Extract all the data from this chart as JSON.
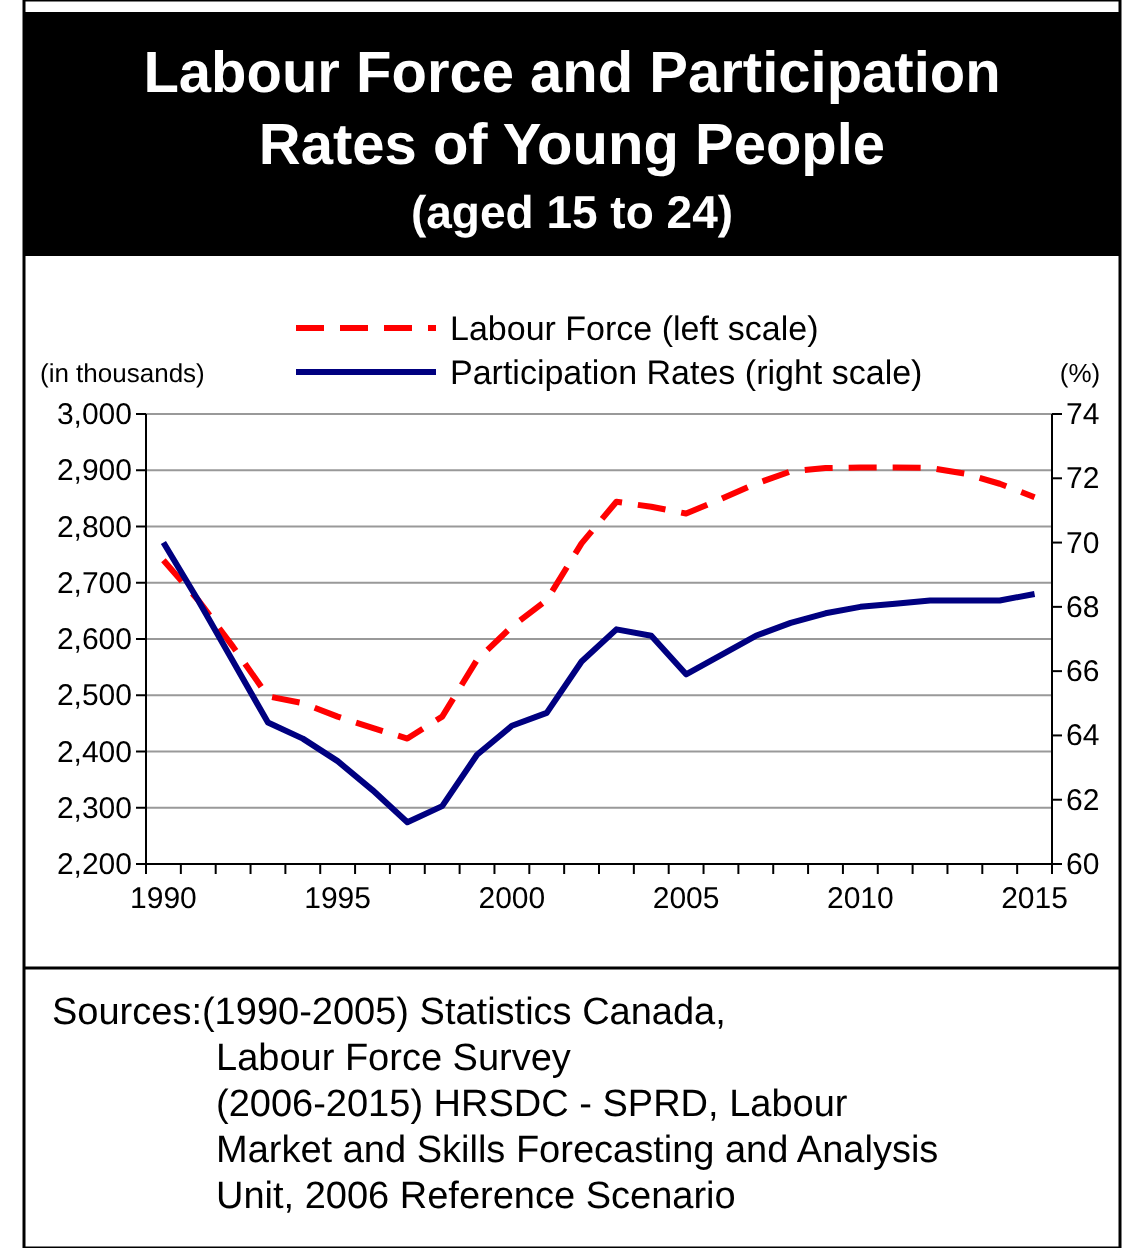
{
  "chart_data": {
    "type": "line",
    "title": "Labour Force and Participation Rates of Young People",
    "subtitle": "(aged 15 to 24)",
    "ylabel": "(in thousands)",
    "y2label": "(%)",
    "categories": [
      "1990",
      null,
      null,
      null,
      null,
      "1995",
      null,
      null,
      null,
      null,
      "2000",
      null,
      null,
      null,
      null,
      "2005",
      null,
      null,
      null,
      null,
      "2010",
      null,
      null,
      null,
      null,
      "2015"
    ],
    "series": [
      {
        "name": "Labour Force (left scale)",
        "color": "#ff0000",
        "line_style": "dashed",
        "values": [
          2740,
          2669,
          2586,
          2498,
          2486,
          2462,
          2442,
          2423,
          2462,
          2563,
          2622,
          2669,
          2770,
          2844,
          2835,
          2823,
          2849,
          2876,
          2898,
          2904,
          2905,
          2905,
          2904,
          2894,
          2876,
          2852
        ]
      },
      {
        "name": "Participation Rates (right scale)",
        "color": "#000080",
        "line_style": "solid",
        "axis": "y2",
        "values": [
          70.0,
          68.2,
          66.3,
          64.4,
          63.9,
          63.2,
          62.3,
          61.3,
          61.8,
          63.4,
          64.3,
          64.7,
          66.3,
          67.3,
          67.1,
          65.9,
          66.5,
          67.1,
          67.5,
          67.8,
          68.0,
          68.1,
          68.2,
          68.2,
          68.2,
          68.4
        ]
      }
    ],
    "ylim": [
      2200,
      3000
    ],
    "yticks": [
      {
        "value": 2200,
        "label": "2,200"
      },
      {
        "value": 2300,
        "label": "2,300"
      },
      {
        "value": 2400,
        "label": "2,400"
      },
      {
        "value": 2500,
        "label": "2,500"
      },
      {
        "value": 2600,
        "label": "2,600"
      },
      {
        "value": 2700,
        "label": "2,700"
      },
      {
        "value": 2800,
        "label": "2,800"
      },
      {
        "value": 2900,
        "label": "2,900"
      },
      {
        "value": 3000,
        "label": "3,000"
      }
    ],
    "y2lim": [
      60,
      74
    ],
    "y2ticks": [
      60,
      62,
      64,
      66,
      68,
      70,
      72,
      74
    ],
    "grid": "y",
    "legend": "top",
    "marker": "none",
    "annotations": [
      "Sources:(1990-2005)  Statistics Canada,\nLabour Force Survey\n(2006-2015)  HRSDC - SPRD, Labour\nMarket and Skills Forecasting and Analysis\nUnit, 2006 Reference Scenario"
    ]
  }
}
